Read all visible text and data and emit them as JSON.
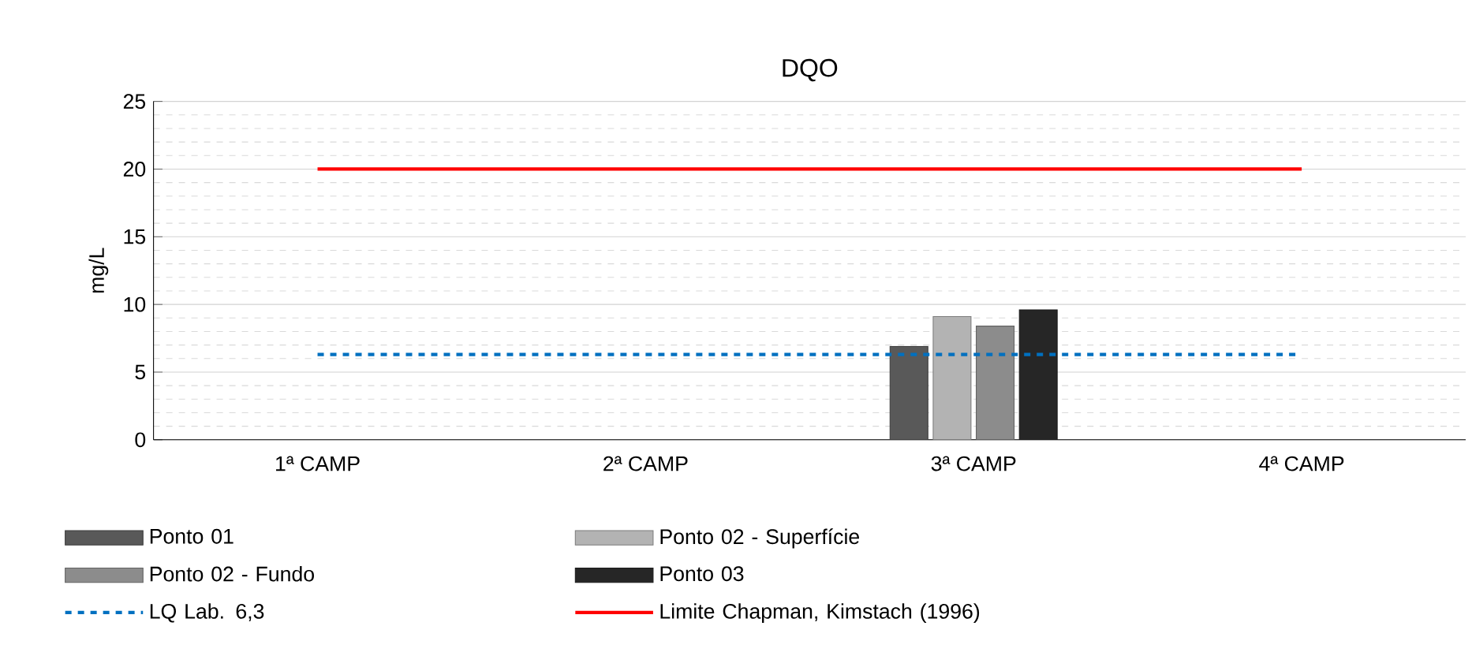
{
  "chart_data": {
    "type": "bar",
    "title": "DQO",
    "ylabel": "mg/L",
    "categories": [
      "1ª CAMP",
      "2ª CAMP",
      "3ª CAMP",
      "4ª CAMP"
    ],
    "series": [
      {
        "name": "Ponto 01",
        "color": "#595959",
        "values": [
          null,
          null,
          6.9,
          null
        ]
      },
      {
        "name": "Ponto 02 - Superfície",
        "color": "#b3b3b3",
        "values": [
          null,
          null,
          9.1,
          null
        ]
      },
      {
        "name": "Ponto 02 - Fundo",
        "color": "#8c8c8c",
        "values": [
          null,
          null,
          8.4,
          null
        ]
      },
      {
        "name": "Ponto 03",
        "color": "#262626",
        "values": [
          null,
          null,
          9.6,
          null
        ]
      }
    ],
    "ref_lines": [
      {
        "axis": "y",
        "value": 6.3,
        "label": "LQ Lab. 6,3",
        "color": "#0070c0",
        "line_style": "dashed"
      },
      {
        "axis": "y",
        "value": 20,
        "label": "Limite Chapman, Kimstach (1996)",
        "color": "#ff0000",
        "line_style": "solid"
      }
    ],
    "ylim": [
      0,
      25
    ],
    "yticks": [
      0,
      5,
      10,
      15,
      20,
      25
    ],
    "grid": "y",
    "legend": "bottom"
  }
}
